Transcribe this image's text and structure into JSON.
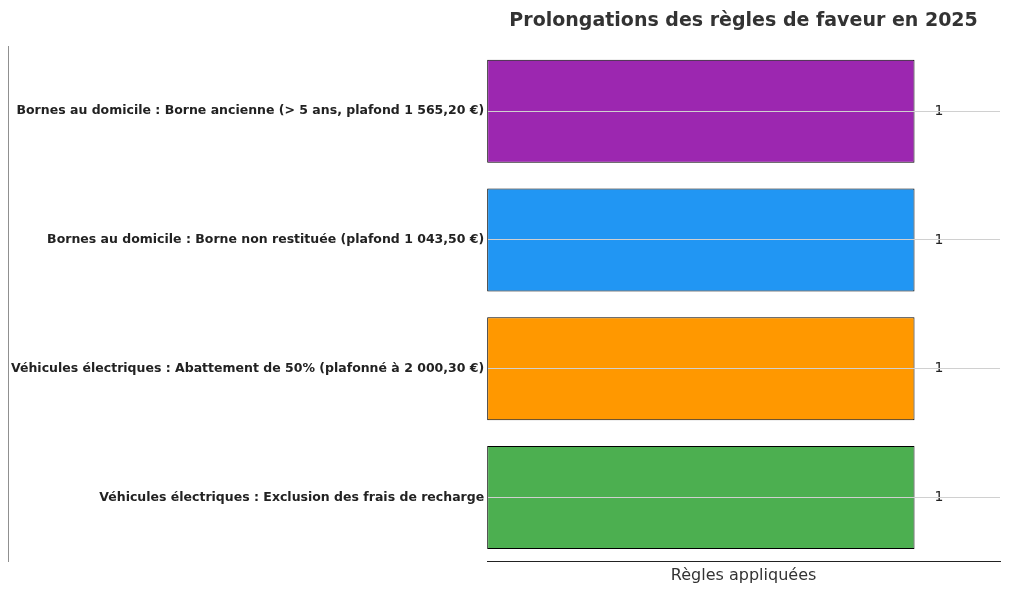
{
  "chart_data": {
    "type": "bar",
    "orientation": "horizontal",
    "title": "Prolongations des règles de faveur en 2025",
    "xlabel": "Règles appliquées",
    "categories": [
      "Bornes au domicile : Borne ancienne (> 5 ans, plafond 1 565,20 €)",
      "Bornes au domicile : Borne non restituée (plafond 1 043,50 €)",
      "Véhicules électriques : Abattement de 50% (plafonné à 2 000,30 €)",
      "Véhicules électriques : Exclusion des frais de recharge"
    ],
    "values": [
      1,
      1,
      1,
      1
    ],
    "colors": [
      "#9c27b0",
      "#2196f3",
      "#ff9800",
      "#4caf50"
    ],
    "data_labels": true,
    "grid": "y",
    "legend": false,
    "tick_labels": "y"
  }
}
